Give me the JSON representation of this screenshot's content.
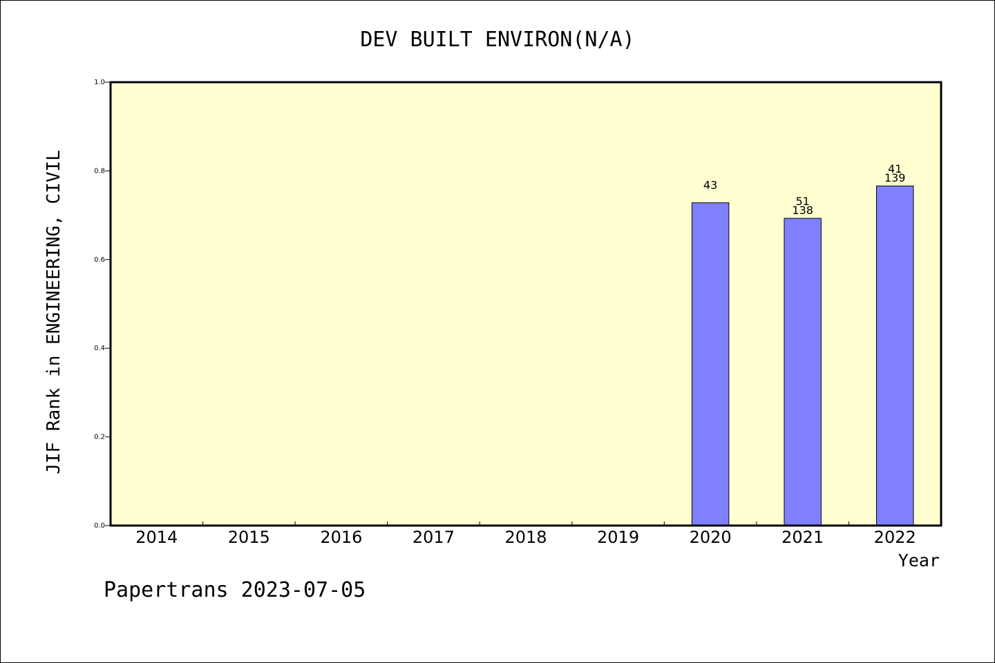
{
  "chart_data": {
    "type": "bar",
    "title": "DEV BUILT ENVIRON(N/A)",
    "xlabel": "Year",
    "ylabel": "JIF Rank in ENGINEERING, CIVIL",
    "ylim": [
      0,
      1.0
    ],
    "yticks": [
      "0.0",
      "0.2",
      "0.4",
      "0.6",
      "0.8",
      "1.0"
    ],
    "categories": [
      "2014",
      "2015",
      "2016",
      "2017",
      "2018",
      "2019",
      "2020",
      "2021",
      "2022"
    ],
    "values": [
      null,
      null,
      null,
      null,
      null,
      null,
      0.728,
      0.693,
      0.766
    ],
    "bar_labels": [
      null,
      null,
      null,
      null,
      null,
      null,
      [
        "43"
      ],
      [
        "51",
        "138"
      ],
      [
        "41",
        "139"
      ]
    ],
    "grid": false,
    "plot_background": "#ffffd2",
    "bar_color": "#8080ff"
  },
  "footer": "Papertrans 2023-07-05"
}
